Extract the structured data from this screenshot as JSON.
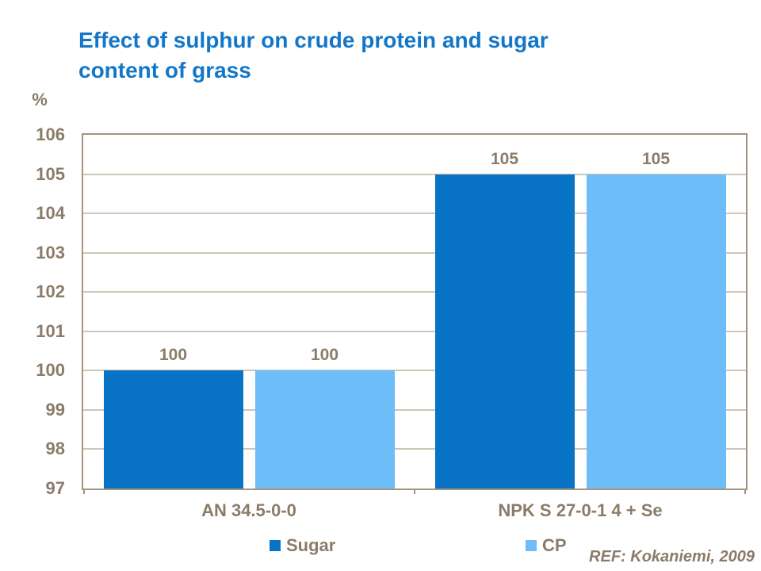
{
  "title": {
    "line1": "Effect of sulphur on crude protein and sugar",
    "line2": "content of grass",
    "color": "#1377c9"
  },
  "axis": {
    "unit_label": "%",
    "text_color": "#8b7b69",
    "border_color": "#a2947f",
    "gridline_color": "#cfc5b7"
  },
  "footer": {
    "ref": "REF: Kokaniemi, 2009"
  },
  "chart_data": {
    "type": "bar",
    "title": "Effect of sulphur on crude protein and sugar content of grass",
    "categories": [
      "AN 34.5-0-0",
      "NPK S 27-0-1 4 + Se"
    ],
    "series": [
      {
        "name": "Sugar",
        "values": [
          100,
          105
        ],
        "color": "#0974c5"
      },
      {
        "name": "CP",
        "values": [
          100,
          105
        ],
        "color": "#6dbdf8"
      }
    ],
    "ylabel": "%",
    "xlabel": "",
    "ylim": [
      97,
      106
    ],
    "ytick_step": 1,
    "grid": true,
    "legend_position": "bottom",
    "data_labels": [
      100,
      100,
      105,
      105
    ]
  }
}
